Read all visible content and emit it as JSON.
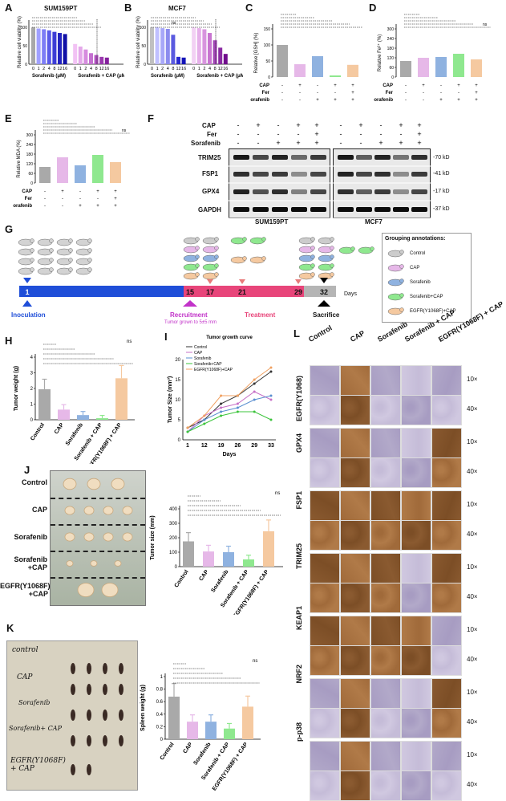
{
  "panels": {
    "A": {
      "label": "A",
      "title": "SUM159PT",
      "ylabel": "Relative cell viability (%)",
      "group1": "Sorafenib (μM)",
      "group2": "Sorafenib + CAP (μM)",
      "ticks": [
        "0",
        "1",
        "2",
        "4",
        "8",
        "12",
        "16",
        "0",
        "1",
        "2",
        "4",
        "8",
        "12",
        "16"
      ]
    },
    "B": {
      "label": "B",
      "title": "MCF7",
      "ylabel": "Relative cell viability (%)",
      "group1": "Sorafenib (μM)",
      "group2": "Sorafenib + CAP (μM)",
      "ticks": [
        "0",
        "1",
        "2",
        "4",
        "8",
        "12",
        "16",
        "0",
        "1",
        "2",
        "4",
        "8",
        "12",
        "16"
      ],
      "sig": "ns"
    },
    "C": {
      "label": "C",
      "ylabel": "Relative [GSH] (%)",
      "rows": [
        "CAP",
        "Fer",
        "Sorafenib"
      ]
    },
    "D": {
      "label": "D",
      "ylabel": "Relative Fe²⁺ (%)",
      "rows": [
        "CAP",
        "Fer",
        "Sorafenib"
      ],
      "sig": "ns"
    },
    "E": {
      "label": "E",
      "ylabel": "Relative MDA (%)",
      "rows": [
        "CAP",
        "Fer",
        "Sorafenib"
      ],
      "sig": "ns"
    },
    "F": {
      "label": "F",
      "rows": [
        "CAP",
        "Fer",
        "Sorafenib"
      ],
      "proteins": [
        "TRIM25",
        "FSP1",
        "GPX4",
        "GAPDH"
      ],
      "kd": [
        "-70 kD",
        "-41 kD",
        "-17 kD",
        "-37 kD"
      ],
      "cell1": "SUM159PT",
      "cell2": "MCF7"
    },
    "G": {
      "label": "G",
      "days": [
        "1",
        "15",
        "17",
        "21",
        "29",
        "32"
      ],
      "days_label": "Days",
      "inoculation": "Inoculation",
      "recruitment": "Recruitment",
      "recruit_note": "Tumor grown to 5±5 mm",
      "treatment": "Treatment",
      "sacrifice": "Sacrifice",
      "legend_title": "Grouping annotations:",
      "legend": [
        "Control",
        "CAP",
        "Sorafenib",
        "Sorafenib+CAP",
        "EGFR(Y1068F)+CAP"
      ]
    },
    "H": {
      "label": "H",
      "ylabel": "Tumor weight (g)",
      "categories": [
        "Control",
        "CAP",
        "Sorafenib",
        "Sorafenib + CAP",
        "EGFR(Y1068F) + CAP"
      ],
      "sig": "ns"
    },
    "I": {
      "label": "I",
      "title": "Tumor growth curve",
      "ylabel": "Tumor Size (mm³)",
      "xlabel": "Days",
      "xticks": [
        "1",
        "12",
        "19",
        "26",
        "29",
        "33"
      ],
      "legend": [
        "Control",
        "CAP",
        "Sorafenib",
        "Sorafenib+CAP",
        "EGFR(Y1068F)+CAP"
      ]
    },
    "J": {
      "label": "J",
      "rows": [
        "Control",
        "CAP",
        "Sorafenib",
        "Sorafenib\n+CAP",
        "EGFR(Y1068F)\n+CAP"
      ],
      "ylabel": "Tumor size (mm)",
      "categories": [
        "Control",
        "CAP",
        "Sorafenib",
        "Sorafenib + CAP",
        "EGFR(Y1068F) + CAP"
      ],
      "sig": "ns"
    },
    "K": {
      "label": "K",
      "notes": [
        "control",
        "CAP",
        "Sorafenib",
        "Sorafenib+ CAP",
        "EGFR(Y1068F)\n+ CAP"
      ],
      "ylabel": "Spleen weight (g)",
      "categories": [
        "Control",
        "CAP",
        "Sorafenib",
        "Sorafenib + CAP",
        "EGFR(Y1068F) + CAP"
      ],
      "sig": "ns"
    },
    "L": {
      "label": "L",
      "columns": [
        "Control",
        "CAP",
        "Sorafenib",
        "Sorafenib + CAP",
        "EGFR(Y1068F) + CAP"
      ],
      "markers": [
        "EGFR(Y1068)",
        "GPX4",
        "FSP1",
        "TRIM25",
        "KEAP1",
        "NRF2",
        "p-p38"
      ],
      "mag": [
        "10×",
        "40×"
      ]
    }
  },
  "chart_data": [
    {
      "panel": "A",
      "type": "bar",
      "ylim": [
        0,
        120
      ],
      "values": [
        100,
        97,
        95,
        92,
        88,
        85,
        82,
        55,
        48,
        40,
        30,
        25,
        20,
        18
      ]
    },
    {
      "panel": "B",
      "type": "bar",
      "ylim": [
        0,
        120
      ],
      "values": [
        100,
        100,
        98,
        96,
        80,
        20,
        18,
        100,
        98,
        95,
        85,
        65,
        45,
        28
      ]
    },
    {
      "panel": "C",
      "type": "bar",
      "ylim": [
        0,
        150
      ],
      "values": [
        100,
        40,
        65,
        5,
        38
      ]
    },
    {
      "panel": "D",
      "type": "bar",
      "ylim": [
        0,
        300
      ],
      "values": [
        100,
        120,
        125,
        145,
        110
      ]
    },
    {
      "panel": "E",
      "type": "bar",
      "ylim": [
        0,
        300
      ],
      "values": [
        100,
        160,
        110,
        175,
        130
      ]
    },
    {
      "panel": "H",
      "type": "bar",
      "ylim": [
        0,
        4
      ],
      "values": [
        1.95,
        0.65,
        0.3,
        0.1,
        2.65
      ]
    },
    {
      "panel": "I",
      "type": "line",
      "ylim": [
        0,
        20
      ],
      "x": [
        1,
        12,
        19,
        26,
        29,
        33
      ],
      "series": [
        {
          "name": "Control",
          "values": [
            3,
            5,
            9,
            11,
            14,
            17
          ]
        },
        {
          "name": "CAP",
          "values": [
            2,
            6,
            8,
            9,
            12,
            10
          ]
        },
        {
          "name": "Sorafenib",
          "values": [
            2,
            5,
            7,
            8,
            10,
            11
          ]
        },
        {
          "name": "Sorafenib+CAP",
          "values": [
            2,
            4,
            6,
            7,
            7,
            5
          ]
        },
        {
          "name": "EGFR(Y1068F)+CAP",
          "values": [
            3,
            6,
            11,
            11,
            15,
            18
          ]
        }
      ]
    },
    {
      "panel": "J",
      "type": "bar",
      "ylim": [
        0,
        400
      ],
      "values": [
        175,
        105,
        100,
        50,
        245
      ]
    },
    {
      "panel": "K",
      "type": "bar",
      "ylim": [
        0,
        1.0
      ],
      "values": [
        0.68,
        0.28,
        0.28,
        0.17,
        0.52
      ]
    }
  ],
  "colors": {
    "grey": "#a9a9a9",
    "pink": "#e6b8e8",
    "blue": "#8fb2e0",
    "green": "#8fe88f",
    "peach": "#f5c9a0",
    "timeline_blue": "#1f4ed8",
    "timeline_pink": "#e8457a"
  }
}
